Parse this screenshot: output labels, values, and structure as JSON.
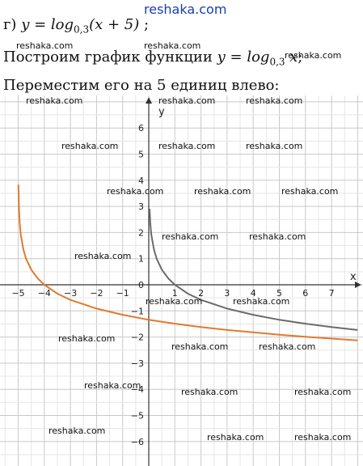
{
  "header": {
    "brand": "reshaka.com"
  },
  "text": {
    "line1_prefix": "г) ",
    "line1_func": "y = log",
    "line1_base": "0,3",
    "line1_arg": "(x + 5)",
    "line1_suffix": " ;",
    "line2_prefix": "Построим график функции ",
    "line2_func": "y = log",
    "line2_base": "0,3",
    "line2_arg": " x",
    "line2_suffix": ";",
    "line3": "Переместим его на 5 единиц влево:"
  },
  "watermark": "reshaka.com",
  "chart_data": {
    "type": "line",
    "xlabel": "x",
    "ylabel": "y",
    "xlim": [
      -5.5,
      8.3
    ],
    "ylim": [
      -7,
      7
    ],
    "grid": true,
    "x_ticks": [
      -5,
      -4,
      -3,
      -2,
      -1,
      0,
      1,
      2,
      3,
      4,
      5,
      6,
      7
    ],
    "y_ticks": [
      -6,
      -5,
      -4,
      -3,
      -2,
      -1,
      0,
      1,
      2,
      3,
      4,
      5,
      6
    ],
    "series": [
      {
        "color": "#6b6b6b",
        "x": [
          0.03,
          0.06,
          0.1,
          0.2,
          0.3,
          0.5,
          0.75,
          1,
          1.5,
          2,
          3,
          4,
          5,
          6,
          7,
          8
        ],
        "y": [
          2.91,
          2.34,
          1.91,
          1.34,
          1.0,
          0.58,
          0.24,
          0,
          -0.34,
          -0.58,
          -0.91,
          -1.15,
          -1.34,
          -1.49,
          -1.62,
          -1.73
        ]
      },
      {
        "color": "#e07a2e",
        "x": [
          -4.99,
          -4.97,
          -4.94,
          -4.9,
          -4.8,
          -4.7,
          -4.5,
          -4.25,
          -4,
          -3.5,
          -3,
          -2,
          -1,
          0,
          1,
          2,
          3,
          4,
          5,
          6,
          7,
          8
        ],
        "y": [
          3.83,
          2.91,
          2.34,
          1.91,
          1.34,
          1.0,
          0.58,
          0.24,
          0,
          -0.34,
          -0.58,
          -0.91,
          -1.15,
          -1.34,
          -1.49,
          -1.62,
          -1.73,
          -1.82,
          -1.91,
          -1.99,
          -2.06,
          -2.13
        ]
      }
    ]
  }
}
